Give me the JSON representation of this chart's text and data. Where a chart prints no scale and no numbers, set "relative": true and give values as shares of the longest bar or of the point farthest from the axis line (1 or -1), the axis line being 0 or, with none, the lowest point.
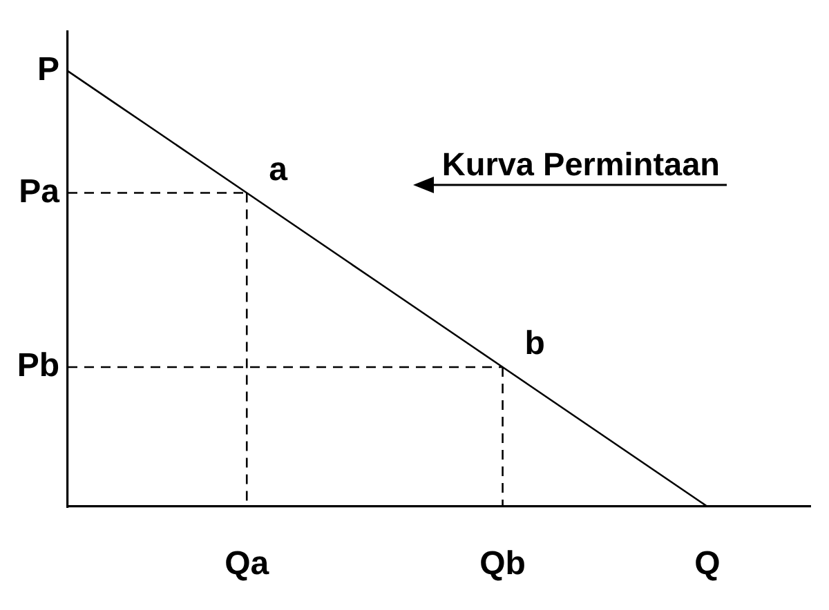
{
  "chart_data": {
    "type": "line",
    "relative": true,
    "categories": [
      null,
      null,
      null,
      null,
      null,
      null,
      null,
      "Qa",
      null,
      null,
      null,
      null,
      null,
      null,
      null,
      null,
      null,
      "Qb",
      null,
      null,
      null,
      null,
      null,
      null,
      null,
      "Q",
      null,
      null,
      null,
      null
    ],
    "annotations": [
      "Kurva Permintaan",
      "P",
      "Pa",
      "Pb",
      {
        "text": "a",
        "x": "Qa",
        "y": 0.72
      },
      {
        "text": "b",
        "x": "Qb",
        "y": 0.32
      }
    ],
    "series": [
      {
        "color": "#000000",
        "values": [
          1,
          0.96,
          0.92,
          0.88,
          0.84,
          0.8,
          0.76,
          0.72,
          0.68,
          0.64,
          0.6,
          0.56,
          0.52,
          0.48,
          0.44,
          0.4,
          0.36,
          0.32,
          0.28,
          0.24,
          0.2,
          0.16,
          0.12,
          0.08,
          0.04,
          0,
          null,
          null,
          null,
          null
        ]
      },
      {
        "color": "#000000",
        "line_style": "dashed",
        "values": [
          0.72,
          0.72,
          0.72,
          0.72,
          0.72,
          0.72,
          0.72,
          0.72,
          null,
          null,
          null,
          null,
          null,
          null,
          null,
          null,
          null,
          null,
          null,
          null,
          null,
          null,
          null,
          null,
          null,
          null,
          null,
          null,
          null,
          null
        ]
      },
      {
        "color": "#000000",
        "line_style": "dashed",
        "values": [
          0.32,
          0.32,
          0.32,
          0.32,
          0.32,
          0.32,
          0.32,
          0.32,
          0.32,
          0.32,
          0.32,
          0.32,
          0.32,
          0.32,
          0.32,
          0.32,
          0.32,
          0.32,
          null,
          null,
          null,
          null,
          null,
          null,
          null,
          null,
          null,
          null,
          null,
          null
        ]
      },
      {
        "color": "#000000",
        "line_style": "dashed",
        "x": [
          "Qa",
          "Qa"
        ],
        "values": [
          0.72,
          0
        ]
      },
      {
        "color": "#000000",
        "line_style": "dashed",
        "x": [
          "Qb",
          "Qb"
        ],
        "values": [
          0.32,
          0
        ]
      }
    ],
    "grid": false,
    "legend": false,
    "marker": "none",
    "line_style": "solid"
  }
}
